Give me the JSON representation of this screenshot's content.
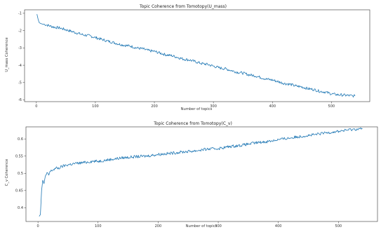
{
  "chart_data": [
    {
      "type": "line",
      "title": "Topic Coherence from Tomotopy(U_mass)",
      "xlabel": "Number of topics",
      "ylabel": "U_mass Coherence",
      "xlim": [
        -20,
        565
      ],
      "ylim": [
        -6.1,
        -0.8
      ],
      "xticks": [
        0,
        100,
        200,
        300,
        400,
        500
      ],
      "yticks": [
        -1,
        -2,
        -3,
        -4,
        -5,
        -6
      ],
      "grid": false,
      "color": "#1f77b4",
      "series": [
        {
          "x": [
            1,
            2,
            3,
            5,
            8,
            10,
            15,
            20,
            25,
            30,
            40,
            50,
            60,
            70,
            80,
            90,
            100,
            110,
            120,
            130,
            140,
            150,
            160,
            170,
            180,
            190,
            200,
            210,
            220,
            230,
            240,
            250,
            260,
            270,
            280,
            290,
            300,
            310,
            320,
            330,
            340,
            350,
            360,
            370,
            380,
            390,
            400,
            410,
            420,
            430,
            440,
            450,
            460,
            470,
            480,
            490,
            500,
            510,
            520,
            530,
            540
          ],
          "values": [
            -1.05,
            -1.2,
            -1.35,
            -1.55,
            -1.6,
            -1.62,
            -1.65,
            -1.7,
            -1.75,
            -1.8,
            -1.85,
            -1.95,
            -2.05,
            -2.15,
            -2.25,
            -2.3,
            -2.4,
            -2.5,
            -2.6,
            -2.68,
            -2.78,
            -2.85,
            -2.9,
            -3.0,
            -3.05,
            -3.15,
            -3.2,
            -3.3,
            -3.4,
            -3.45,
            -3.55,
            -3.65,
            -3.7,
            -3.8,
            -3.9,
            -3.95,
            -4.05,
            -4.15,
            -4.2,
            -4.3,
            -4.4,
            -4.45,
            -4.55,
            -4.6,
            -4.7,
            -4.8,
            -4.85,
            -4.95,
            -5.05,
            -5.1,
            -5.2,
            -5.25,
            -5.35,
            -5.4,
            -5.5,
            -5.55,
            -5.65,
            -5.7,
            -5.72,
            -5.75,
            -5.78
          ]
        }
      ]
    },
    {
      "type": "line",
      "title": "Topic Coherence from Tomotopy(C_v)",
      "xlabel": "Number of topics",
      "ylabel": "C_v Coherence",
      "xlim": [
        -20,
        565
      ],
      "ylim": [
        0.36,
        0.635
      ],
      "xticks": [
        0,
        100,
        200,
        300,
        400,
        500
      ],
      "yticks": [
        0.6,
        0.55,
        0.5,
        0.45,
        0.4
      ],
      "grid": false,
      "color": "#1f77b4",
      "series": [
        {
          "x": [
            2,
            4,
            6,
            8,
            10,
            12,
            15,
            18,
            20,
            25,
            30,
            35,
            40,
            50,
            60,
            70,
            80,
            90,
            100,
            120,
            140,
            160,
            180,
            200,
            220,
            240,
            260,
            280,
            300,
            320,
            340,
            360,
            380,
            400,
            420,
            440,
            460,
            480,
            500,
            520,
            540
          ],
          "values": [
            0.375,
            0.38,
            0.45,
            0.48,
            0.47,
            0.49,
            0.5,
            0.495,
            0.505,
            0.51,
            0.515,
            0.515,
            0.52,
            0.525,
            0.528,
            0.53,
            0.532,
            0.535,
            0.535,
            0.54,
            0.545,
            0.548,
            0.55,
            0.555,
            0.558,
            0.562,
            0.565,
            0.57,
            0.572,
            0.578,
            0.582,
            0.588,
            0.592,
            0.598,
            0.603,
            0.608,
            0.612,
            0.618,
            0.622,
            0.627,
            0.63
          ]
        }
      ]
    }
  ]
}
